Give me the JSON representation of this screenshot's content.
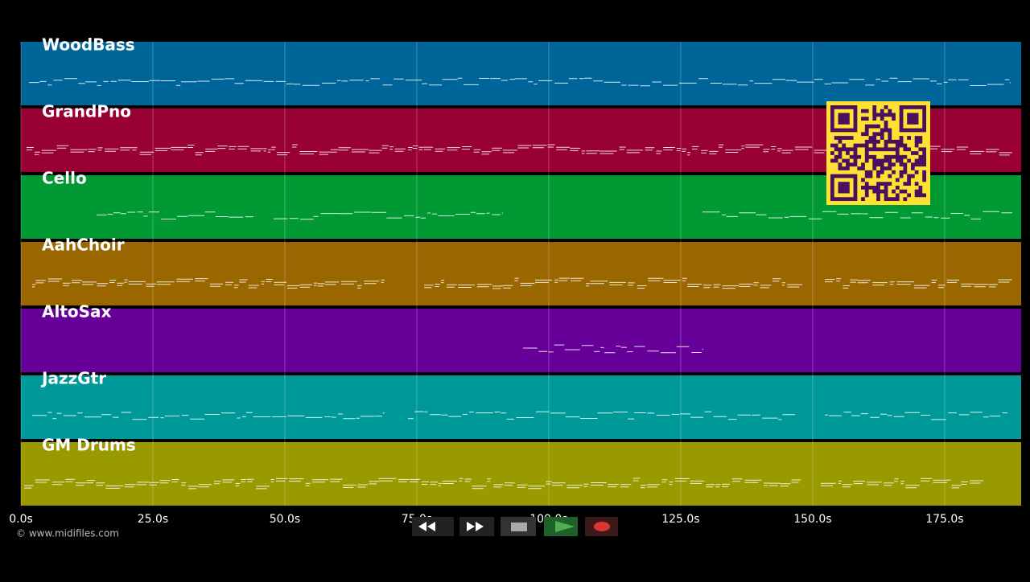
{
  "timeline": {
    "xlim": [
      0,
      189.5
    ],
    "xticks": [
      {
        "value": 0,
        "label": "0.0s"
      },
      {
        "value": 25,
        "label": "25.0s"
      },
      {
        "value": 50,
        "label": "50.0s"
      },
      {
        "value": 75,
        "label": "75.0s"
      },
      {
        "value": 100,
        "label": "100.0s"
      },
      {
        "value": 125,
        "label": "125.0s"
      },
      {
        "value": 150,
        "label": "150.0s"
      },
      {
        "value": 175,
        "label": "175.0s"
      }
    ]
  },
  "tracks": [
    {
      "name": "WoodBass",
      "color": "#006699"
    },
    {
      "name": "GrandPno",
      "color": "#990033"
    },
    {
      "name": "Cello",
      "color": "#009933"
    },
    {
      "name": "AahChoir",
      "color": "#996600"
    },
    {
      "name": "AltoSax",
      "color": "#660099"
    },
    {
      "name": "JazzGtr",
      "color": "#009999"
    },
    {
      "name": "GM Drums",
      "color": "#999900"
    }
  ],
  "footer": "© www.midifiles.com"
}
